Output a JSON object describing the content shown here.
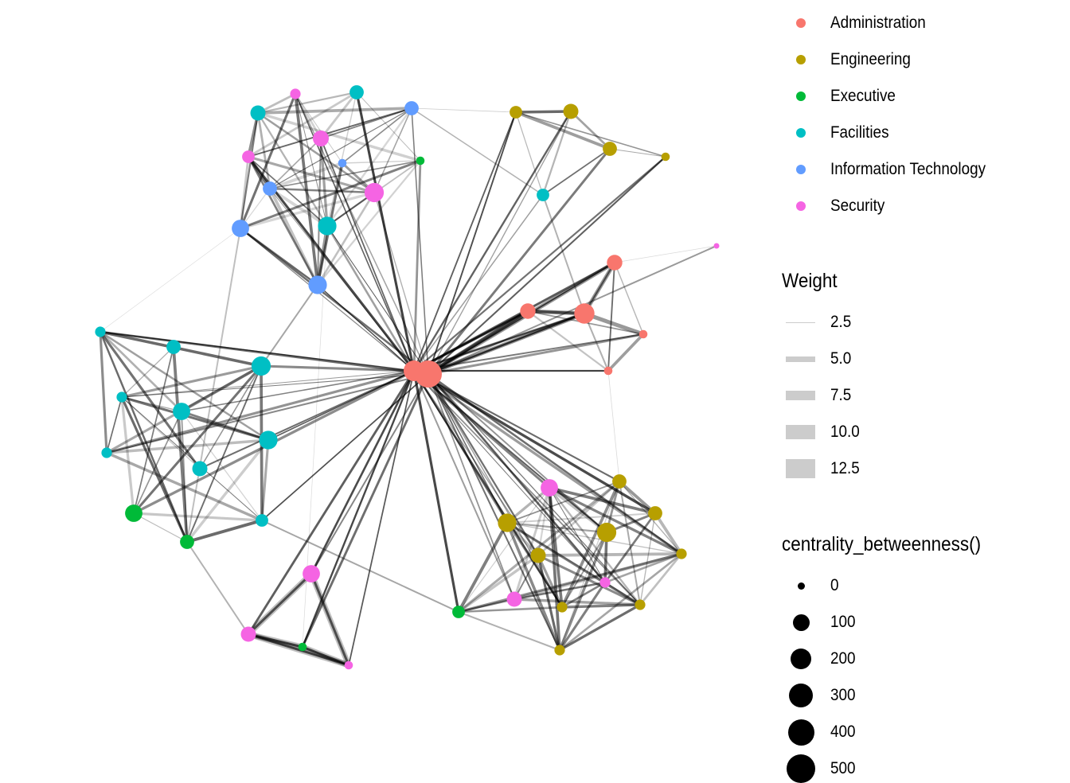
{
  "legend_department": {
    "items": [
      {
        "label": "Administration",
        "color": "#F8766D"
      },
      {
        "label": "Engineering",
        "color": "#B79F00"
      },
      {
        "label": "Executive",
        "color": "#00BA38"
      },
      {
        "label": "Facilities",
        "color": "#00BFC4"
      },
      {
        "label": "Information Technology",
        "color": "#619CFF"
      },
      {
        "label": "Security",
        "color": "#F564E3"
      }
    ]
  },
  "legend_weight": {
    "title": "Weight",
    "items": [
      "2.5",
      "5.0",
      "7.5",
      "10.0",
      "12.5"
    ]
  },
  "legend_centrality": {
    "title": "centrality_betweenness()",
    "items": [
      "0",
      "100",
      "200",
      "300",
      "400",
      "500"
    ]
  },
  "edge_color": "#000000",
  "nodes": [
    {
      "group": "Administration",
      "betweenness": 280
    },
    {
      "group": "Administration",
      "betweenness": 560
    },
    {
      "group": "Administration",
      "betweenness": 120
    },
    {
      "group": "Administration",
      "betweenness": 120
    },
    {
      "group": "Administration",
      "betweenness": 260
    },
    {
      "group": "Administration",
      "betweenness": 10
    },
    {
      "group": "Administration",
      "betweenness": 10
    },
    {
      "group": "Security",
      "betweenness": 0
    },
    {
      "group": "Facilities",
      "betweenness": 110
    },
    {
      "group": "Facilities",
      "betweenness": 90
    },
    {
      "group": "Facilities",
      "betweenness": 200
    },
    {
      "group": "Security",
      "betweenness": 30
    },
    {
      "group": "Security",
      "betweenness": 130
    },
    {
      "group": "Security",
      "betweenness": 60
    },
    {
      "group": "Security",
      "betweenness": 230
    },
    {
      "group": "Information Technology",
      "betweenness": 90
    },
    {
      "group": "Information Technology",
      "betweenness": 10
    },
    {
      "group": "Information Technology",
      "betweenness": 90
    },
    {
      "group": "Information Technology",
      "betweenness": 170
    },
    {
      "group": "Information Technology",
      "betweenness": 200
    },
    {
      "group": "Executive",
      "betweenness": 10
    },
    {
      "group": "Engineering",
      "betweenness": 60
    },
    {
      "group": "Engineering",
      "betweenness": 110
    },
    {
      "group": "Engineering",
      "betweenness": 90
    },
    {
      "group": "Engineering",
      "betweenness": 10
    },
    {
      "group": "Facilities",
      "betweenness": 60
    },
    {
      "group": "Facilities",
      "betweenness": 30
    },
    {
      "group": "Facilities",
      "betweenness": 90
    },
    {
      "group": "Facilities",
      "betweenness": 230
    },
    {
      "group": "Facilities",
      "betweenness": 30
    },
    {
      "group": "Facilities",
      "betweenness": 170
    },
    {
      "group": "Facilities",
      "betweenness": 200
    },
    {
      "group": "Facilities",
      "betweenness": 30
    },
    {
      "group": "Facilities",
      "betweenness": 110
    },
    {
      "group": "Facilities",
      "betweenness": 60
    },
    {
      "group": "Executive",
      "betweenness": 170
    },
    {
      "group": "Executive",
      "betweenness": 90
    },
    {
      "group": "Security",
      "betweenness": 170
    },
    {
      "group": "Security",
      "betweenness": 110
    },
    {
      "group": "Security",
      "betweenness": 10
    },
    {
      "group": "Executive",
      "betweenness": 10
    },
    {
      "group": "Executive",
      "betweenness": 60
    },
    {
      "group": "Security",
      "betweenness": 170
    },
    {
      "group": "Security",
      "betweenness": 110
    },
    {
      "group": "Security",
      "betweenness": 30
    },
    {
      "group": "Engineering",
      "betweenness": 90
    },
    {
      "group": "Engineering",
      "betweenness": 200
    },
    {
      "group": "Engineering",
      "betweenness": 90
    },
    {
      "group": "Engineering",
      "betweenness": 230
    },
    {
      "group": "Engineering",
      "betweenness": 110
    },
    {
      "group": "Engineering",
      "betweenness": 30
    },
    {
      "group": "Engineering",
      "betweenness": 30
    },
    {
      "group": "Engineering",
      "betweenness": 30
    },
    {
      "group": "Engineering",
      "betweenness": 30
    }
  ]
}
